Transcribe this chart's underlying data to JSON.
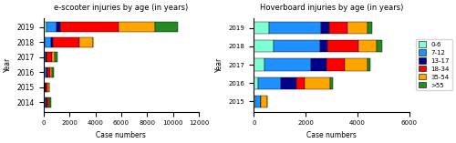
{
  "escooter": {
    "years": [
      "2014",
      "2015",
      "2016",
      "2017",
      "2018",
      "2019"
    ],
    "segments": {
      "0-6": [
        50,
        40,
        60,
        50,
        100,
        200
      ],
      "7-12": [
        100,
        80,
        150,
        100,
        500,
        800
      ],
      "13-17": [
        50,
        50,
        70,
        80,
        150,
        300
      ],
      "18-34": [
        150,
        150,
        200,
        400,
        2000,
        4500
      ],
      "35-54": [
        120,
        120,
        200,
        250,
        1100,
        2800
      ],
      "55+": [
        100,
        0,
        150,
        200,
        0,
        1800
      ]
    }
  },
  "hoverboard": {
    "years": [
      "2015",
      "2016",
      "2017",
      "2018",
      "2019"
    ],
    "segments": {
      "0-6": [
        50,
        150,
        400,
        750,
        600
      ],
      "7-12": [
        200,
        900,
        1800,
        1800,
        2000
      ],
      "13-17": [
        0,
        600,
        600,
        300,
        300
      ],
      "18-34": [
        0,
        300,
        700,
        1200,
        700
      ],
      "35-54": [
        250,
        1000,
        900,
        700,
        800
      ],
      "55+": [
        0,
        100,
        100,
        200,
        150
      ]
    }
  },
  "colors": {
    "0-6": "#7FFFD4",
    "7-12": "#1E90FF",
    "13-17": "#00008B",
    "18-34": "#FF0000",
    "35-54": "#FFA500",
    "55+": "#228B22"
  },
  "age_groups": [
    "0-6",
    "7-12",
    "13-17",
    "18-34",
    "35-54",
    "55+"
  ],
  "legend_labels": [
    "0-6",
    "7-12",
    "13-17",
    "18-34",
    "35-54",
    ">55"
  ],
  "escooter_title": "e-scooter injuries by age (in years)",
  "hoverboard_title": "Hoverboard injuries by age (in years)",
  "xlabel": "Case numbers",
  "ylabel": "Year",
  "escooter_xlim": [
    0,
    12000
  ],
  "hoverboard_xlim": [
    0,
    6000
  ],
  "escooter_xticks": [
    0,
    2000,
    4000,
    6000,
    8000,
    10000,
    12000
  ],
  "hoverboard_xticks": [
    0,
    2000,
    4000,
    6000
  ]
}
